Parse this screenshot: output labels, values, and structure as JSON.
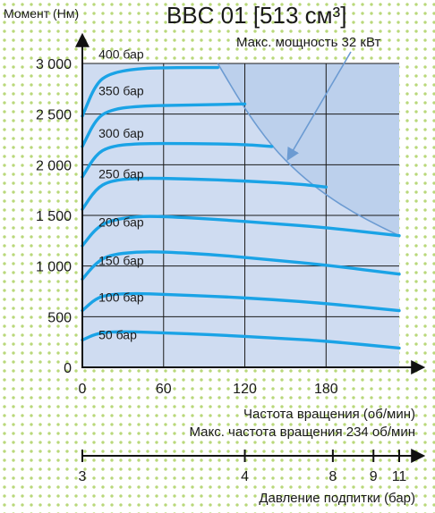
{
  "chart_data": {
    "type": "line",
    "title": "BBC 01 [513 см³]",
    "ylabel": "Момент (Нм)",
    "xlabel": "Частота вращения (об/мин)",
    "max_speed_label": "Макс. частота вращения 234 об/мин",
    "power_label": "Макс. мощность 32 кВт",
    "xlim": [
      0,
      234
    ],
    "ylim": [
      0,
      3000
    ],
    "x_ticks": [
      0,
      60,
      120,
      180
    ],
    "x_tick_labels": [
      "0",
      "60",
      "120",
      "180"
    ],
    "y_ticks": [
      0,
      500,
      1000,
      1500,
      2000,
      2500,
      3000
    ],
    "y_tick_labels": [
      "0",
      "500",
      "1 000",
      "1 500",
      "2 000",
      "2 500",
      "3 000"
    ],
    "grid": true,
    "power_limit_curve": {
      "x": [
        100,
        120,
        140,
        160,
        180,
        200,
        220,
        234
      ],
      "y": [
        3000,
        2550,
        2180,
        1910,
        1700,
        1530,
        1390,
        1300
      ]
    },
    "series": [
      {
        "name": "400 бар",
        "x": [
          0,
          10,
          20,
          40,
          70,
          100
        ],
        "y": [
          2480,
          2800,
          2900,
          2950,
          2960,
          2960
        ]
      },
      {
        "name": "350 бар",
        "x": [
          0,
          10,
          20,
          40,
          80,
          120
        ],
        "y": [
          2180,
          2450,
          2540,
          2580,
          2590,
          2600
        ]
      },
      {
        "name": "300 бар",
        "x": [
          0,
          10,
          20,
          40,
          80,
          120,
          140
        ],
        "y": [
          1880,
          2100,
          2180,
          2210,
          2210,
          2200,
          2180
        ]
      },
      {
        "name": "250 бар",
        "x": [
          0,
          10,
          20,
          40,
          80,
          120,
          160,
          180
        ],
        "y": [
          1560,
          1760,
          1840,
          1870,
          1860,
          1840,
          1810,
          1780
        ]
      },
      {
        "name": "200 бар",
        "x": [
          0,
          10,
          20,
          40,
          60,
          100,
          140,
          180,
          234
        ],
        "y": [
          1200,
          1370,
          1450,
          1490,
          1490,
          1460,
          1420,
          1380,
          1300
        ]
      },
      {
        "name": "150 бар",
        "x": [
          0,
          10,
          20,
          40,
          60,
          100,
          140,
          180,
          234
        ],
        "y": [
          870,
          1030,
          1110,
          1140,
          1140,
          1110,
          1060,
          1010,
          920
        ]
      },
      {
        "name": "100 бар",
        "x": [
          0,
          10,
          20,
          40,
          60,
          100,
          140,
          180,
          234
        ],
        "y": [
          560,
          680,
          720,
          730,
          720,
          700,
          670,
          630,
          560
        ]
      },
      {
        "name": "50 бар",
        "x": [
          0,
          10,
          20,
          40,
          60,
          100,
          140,
          180,
          234
        ],
        "y": [
          270,
          330,
          350,
          350,
          340,
          320,
          290,
          260,
          190
        ]
      }
    ],
    "boost_axis": {
      "label": "Давление подпитки (бар)",
      "ticks": [
        3,
        4,
        8,
        9,
        11
      ],
      "tick_labels": [
        "3",
        "4",
        "8",
        "9",
        "11"
      ],
      "tick_positions_rpm": [
        0,
        120,
        185,
        215,
        234
      ]
    }
  }
}
